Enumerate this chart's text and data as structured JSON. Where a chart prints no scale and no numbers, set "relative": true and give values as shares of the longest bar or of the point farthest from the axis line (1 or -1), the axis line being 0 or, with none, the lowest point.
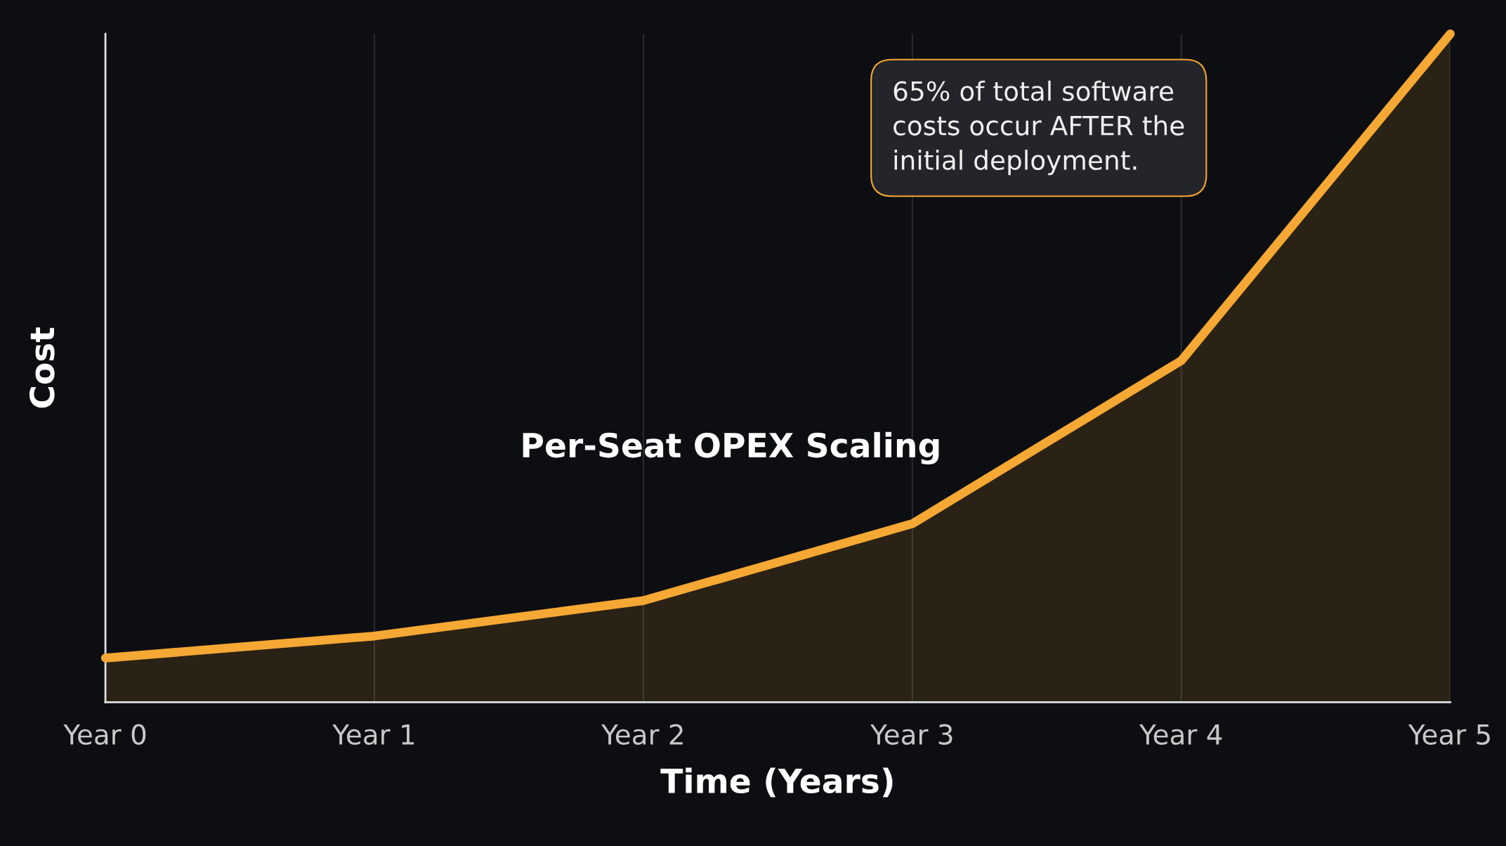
{
  "chart_data": {
    "type": "area",
    "relative": true,
    "xlabel": "Time (Years)",
    "ylabel": "Cost",
    "categories": [
      "Year 0",
      "Year 1",
      "Year 2",
      "Year 3",
      "Year 4",
      "Year 5"
    ],
    "grid": "x",
    "series": [
      {
        "name": "Per-Seat OPEX Scaling",
        "color": "#f5a833",
        "values": [
          0.066,
          0.099,
          0.152,
          0.267,
          0.511,
          1.0
        ]
      }
    ],
    "annotations": [
      "65% of total software\ncosts occur AFTER the\ninitial deployment."
    ]
  }
}
